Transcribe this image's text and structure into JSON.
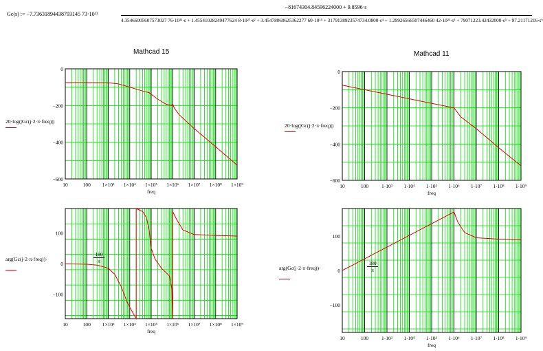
{
  "formula": {
    "lhs": "Gc(s) := −7.73631894438793145 73·10²³",
    "numerator": "−81674304.84596224000 + 9.8596·s",
    "denominator": "4.35466005607573027 76·10³¹·s + 1.45541028249477624 8·10²⁷·s² + 3.45478060625362277 60·10¹⁵ + 3179138923574734.0800·s⁴ + 1.29926566507446460 42·10²¹·s³ + 79071223.42432000·s⁵ + 97.21171216·s⁶"
  },
  "titles": {
    "left": "Mathcad 15",
    "right": "Mathcad 11"
  },
  "ylabels": {
    "mag": "20·log(|Gc(j·2·π·freq)|)",
    "phase_left": "arg(Gc(j·2·π·freq))·",
    "phase_right": "arg(Gc(j·2·π·freq))·",
    "frac_num": "180",
    "frac_den": "π"
  },
  "xlabel": "freq",
  "colors": {
    "grid": "#00dd00",
    "major": "#202020",
    "trace": "#dd0000"
  },
  "chart_data": [
    {
      "type": "line",
      "title": "Mathcad 15",
      "xlabel": "freq",
      "xscale": "log",
      "xlim": [
        10,
        1000000000
      ],
      "ylim": [
        -600,
        0
      ],
      "xticks": [
        "10",
        "100",
        "1×10³",
        "1×10⁴",
        "1×10⁵",
        "1×10⁶",
        "1×10⁷",
        "1×10⁸",
        "1×10⁹"
      ],
      "yticks": [
        "0",
        "−200",
        "−400",
        "−600"
      ],
      "x": [
        10,
        100,
        1000,
        3000,
        10000,
        30000,
        80000,
        200000,
        500000,
        900000,
        1000000,
        1200000,
        2000000,
        10000000,
        100000000,
        1000000000
      ],
      "y": [
        -75,
        -75,
        -76,
        -82,
        -100,
        -117,
        -130,
        -165,
        -193,
        -200,
        -192,
        -215,
        -250,
        -325,
        -425,
        -525
      ]
    },
    {
      "type": "line",
      "title": "Mathcad 11",
      "xlabel": "freq",
      "xscale": "log",
      "xlim": [
        10,
        1000000000
      ],
      "ylim": [
        -600,
        0
      ],
      "xticks": [
        "10",
        "100",
        "1·10³",
        "1·10⁴",
        "1·10⁵",
        "1·10⁶",
        "1·10⁷",
        "1·10⁸",
        "1·10⁹"
      ],
      "yticks": [
        "0",
        "−200",
        "−400",
        "−600"
      ],
      "x": [
        10,
        1000000,
        2000000,
        10000000,
        100000000,
        1000000000
      ],
      "y": [
        -75,
        -200,
        -250,
        -315,
        -420,
        -520
      ]
    },
    {
      "type": "line",
      "xlabel": "freq",
      "xscale": "log",
      "xlim": [
        10,
        1000000000
      ],
      "ylim": [
        -180,
        180
      ],
      "xticks": [
        "10",
        "100",
        "1×10³",
        "1×10⁴",
        "1×10⁵",
        "1×10⁶",
        "1×10⁷",
        "1×10⁸",
        "1×10⁹"
      ],
      "yticks": [
        "100",
        "0",
        "−100"
      ],
      "x": [
        10,
        100,
        300,
        1000,
        2000,
        4000,
        8000,
        15000,
        20000,
        20000,
        40000,
        60000,
        80000,
        100000,
        150000,
        300000,
        700000,
        900000,
        1000000,
        1000000,
        1500000,
        3000000,
        10000000,
        100000000,
        1000000000
      ],
      "y": [
        -1,
        -2,
        -5,
        -15,
        -35,
        -75,
        -130,
        -165,
        -180,
        180,
        170,
        150,
        110,
        50,
        15,
        -15,
        -40,
        -80,
        -180,
        170,
        145,
        110,
        95,
        92,
        90
      ]
    },
    {
      "type": "line",
      "xlabel": "freq",
      "xscale": "log",
      "xlim": [
        10,
        1000000000
      ],
      "ylim": [
        -180,
        180
      ],
      "xticks": [
        "10",
        "100",
        "1·10³",
        "1·10⁴",
        "1·10⁵",
        "1·10⁶",
        "1·10⁷",
        "1·10⁸",
        "1·10⁹"
      ],
      "yticks": [
        "100",
        "0",
        "−100"
      ],
      "x": [
        10,
        1000000,
        1500000,
        3000000,
        10000000,
        100000000,
        1000000000
      ],
      "y": [
        0,
        170,
        140,
        110,
        95,
        91,
        90
      ]
    }
  ]
}
